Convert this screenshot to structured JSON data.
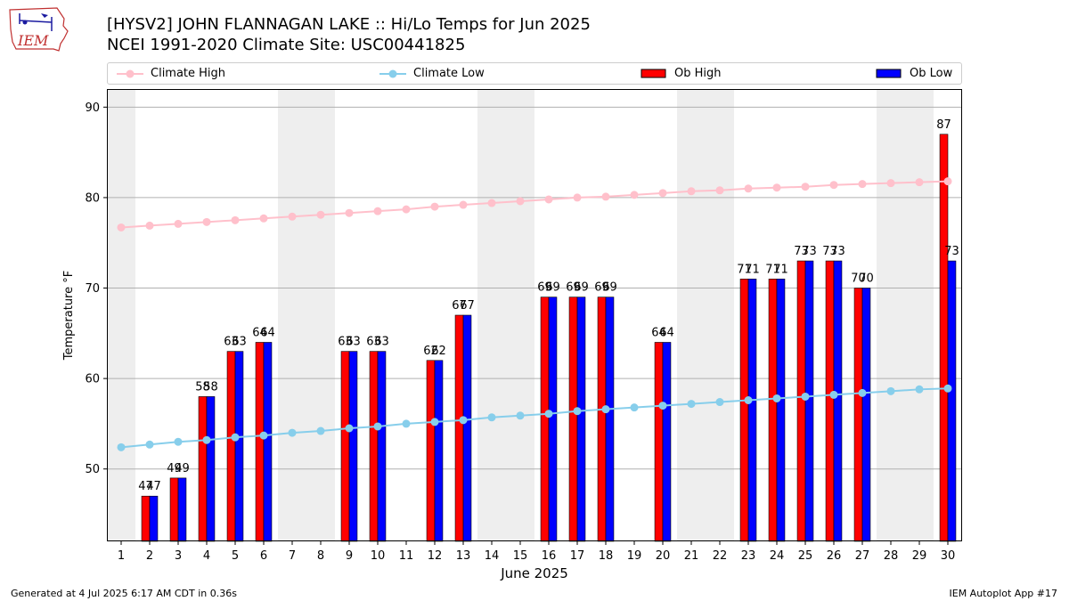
{
  "title_line1": "[HYSV2] JOHN FLANNAGAN LAKE :: Hi/Lo Temps for Jun 2025",
  "title_line2": "NCEI 1991-2020 Climate Site: USC00441825",
  "logo_text": "IEM",
  "footer_left": "Generated at 4 Jul 2025 6:17 AM CDT in 0.36s",
  "footer_right": "IEM Autoplot App #17",
  "colors": {
    "climate_high": "#ffc0cb",
    "climate_low": "#87ceeb",
    "ob_high": "#ff0000",
    "ob_low": "#0000ff",
    "weekend_band": "#eeeeee",
    "grid": "#b0b0b0"
  },
  "chart_data": {
    "type": "bar",
    "xlabel": "June 2025",
    "ylabel": "Temperature °F",
    "ylim": [
      42,
      92
    ],
    "xlim": [
      0.5,
      30.5
    ],
    "yticks": [
      50,
      60,
      70,
      80,
      90
    ],
    "grid": "horizontal",
    "legend_position": "top",
    "weekend_bands": [
      [
        0.5,
        1.5
      ],
      [
        6.5,
        8.5
      ],
      [
        13.5,
        15.5
      ],
      [
        20.5,
        22.5
      ],
      [
        27.5,
        29.5
      ]
    ],
    "x": [
      1,
      2,
      3,
      4,
      5,
      6,
      7,
      8,
      9,
      10,
      11,
      12,
      13,
      14,
      15,
      16,
      17,
      18,
      19,
      20,
      21,
      22,
      23,
      24,
      25,
      26,
      27,
      28,
      29,
      30
    ],
    "series": [
      {
        "name": "Climate High",
        "kind": "line",
        "values": [
          76.7,
          76.9,
          77.1,
          77.3,
          77.5,
          77.7,
          77.9,
          78.1,
          78.3,
          78.5,
          78.7,
          79.0,
          79.2,
          79.4,
          79.6,
          79.8,
          80.0,
          80.1,
          80.3,
          80.5,
          80.7,
          80.8,
          81.0,
          81.1,
          81.2,
          81.4,
          81.5,
          81.6,
          81.7,
          81.8
        ]
      },
      {
        "name": "Climate Low",
        "kind": "line",
        "values": [
          52.4,
          52.7,
          53.0,
          53.2,
          53.5,
          53.7,
          54.0,
          54.2,
          54.5,
          54.7,
          55.0,
          55.2,
          55.4,
          55.7,
          55.9,
          56.1,
          56.4,
          56.6,
          56.8,
          57.0,
          57.2,
          57.4,
          57.6,
          57.8,
          58.0,
          58.2,
          58.4,
          58.6,
          58.8,
          58.9
        ]
      },
      {
        "name": "Ob High",
        "kind": "bar",
        "values": [
          null,
          47,
          49,
          58,
          63,
          64,
          null,
          null,
          63,
          63,
          null,
          62,
          67,
          null,
          null,
          69,
          69,
          69,
          null,
          64,
          null,
          null,
          71,
          71,
          73,
          73,
          70,
          null,
          null,
          87
        ]
      },
      {
        "name": "Ob Low",
        "kind": "bar",
        "values": [
          null,
          47,
          49,
          58,
          63,
          64,
          null,
          null,
          63,
          63,
          null,
          62,
          67,
          null,
          null,
          69,
          69,
          69,
          null,
          64,
          null,
          null,
          71,
          71,
          73,
          73,
          70,
          null,
          null,
          73
        ]
      }
    ]
  }
}
